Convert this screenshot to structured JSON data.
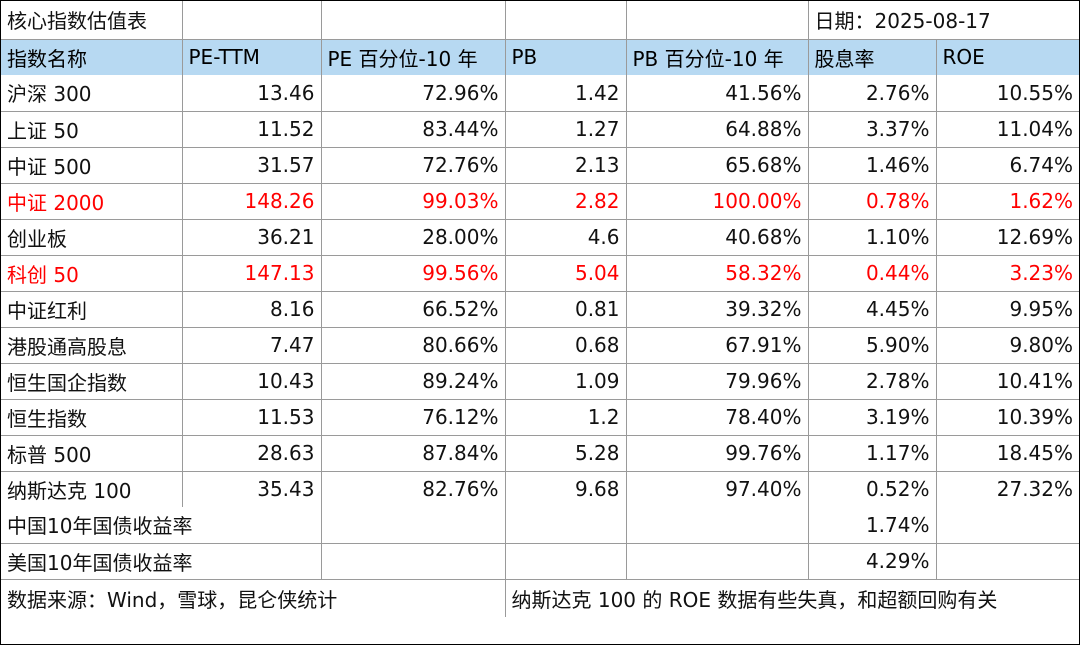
{
  "title": "核心指数估值表",
  "date_label": "日期：2025-08-17",
  "headers": [
    "指数名称",
    "PE-TTM",
    "PE 百分位-10 年",
    "PB",
    "PB 百分位-10 年",
    "股息率",
    "ROE"
  ],
  "rows": [
    {
      "name": "沪深 300",
      "pe": "13.46",
      "pe_pct": "72.96%",
      "pb": "1.42",
      "pb_pct": "41.56%",
      "div": "2.76%",
      "roe": "10.55%"
    },
    {
      "name": "上证 50",
      "pe": "11.52",
      "pe_pct": "83.44%",
      "pb": "1.27",
      "pb_pct": "64.88%",
      "div": "3.37%",
      "roe": "11.04%"
    },
    {
      "name": "中证 500",
      "pe": "31.57",
      "pe_pct": "72.76%",
      "pb": "2.13",
      "pb_pct": "65.68%",
      "div": "1.46%",
      "roe": "6.74%"
    },
    {
      "name": "中证 2000",
      "pe": "148.26",
      "pe_pct": "99.03%",
      "pb": "2.82",
      "pb_pct": "100.00%",
      "div": "0.78%",
      "roe": "1.62%"
    },
    {
      "name": "创业板",
      "pe": "36.21",
      "pe_pct": "28.00%",
      "pb": "4.6",
      "pb_pct": "40.68%",
      "div": "1.10%",
      "roe": "12.69%"
    },
    {
      "name": "科创 50",
      "pe": "147.13",
      "pe_pct": "99.56%",
      "pb": "5.04",
      "pb_pct": "58.32%",
      "div": "0.44%",
      "roe": "3.23%"
    },
    {
      "name": "中证红利",
      "pe": "8.16",
      "pe_pct": "66.52%",
      "pb": "0.81",
      "pb_pct": "39.32%",
      "div": "4.45%",
      "roe": "9.95%"
    },
    {
      "name": "港股通高股息",
      "pe": "7.47",
      "pe_pct": "80.66%",
      "pb": "0.68",
      "pb_pct": "67.91%",
      "div": "5.90%",
      "roe": "9.80%"
    },
    {
      "name": "恒生国企指数",
      "pe": "10.43",
      "pe_pct": "89.24%",
      "pb": "1.09",
      "pb_pct": "79.96%",
      "div": "2.78%",
      "roe": "10.41%"
    },
    {
      "name": "恒生指数",
      "pe": "11.53",
      "pe_pct": "76.12%",
      "pb": "1.2",
      "pb_pct": "78.40%",
      "div": "3.19%",
      "roe": "10.39%"
    },
    {
      "name": "标普 500",
      "pe": "28.63",
      "pe_pct": "87.84%",
      "pb": "5.28",
      "pb_pct": "99.76%",
      "div": "1.17%",
      "roe": "18.45%"
    },
    {
      "name": "纳斯达克 100",
      "pe": "35.43",
      "pe_pct": "82.76%",
      "pb": "9.68",
      "pb_pct": "97.40%",
      "div": "0.52%",
      "roe": "27.32%"
    }
  ],
  "highlight_color": "#ff0000",
  "header_bg": "#b7d9f2",
  "bonds": [
    {
      "name": "中国10年国债收益率",
      "value": "1.74%"
    },
    {
      "name": "美国10年国债收益率",
      "value": "4.29%"
    }
  ],
  "footer": {
    "source": "数据来源：Wind，雪球，昆仑侠统计",
    "note": "纳斯达克 100 的 ROE 数据有些失真，和超额回购有关"
  }
}
